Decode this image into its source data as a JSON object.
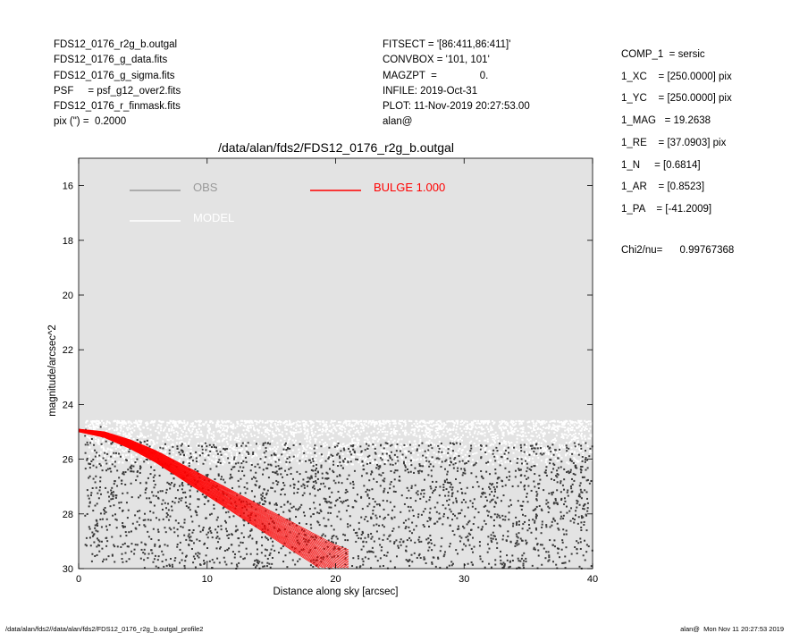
{
  "header_left": [
    "FDS12_0176_r2g_b.outgal",
    "FDS12_0176_g_data.fits",
    "FDS12_0176_g_sigma.fits",
    "PSF     = psf_g12_over2.fits",
    "FDS12_0176_r_finmask.fits",
    "pix (\") =  0.2000"
  ],
  "header_middle": [
    "FITSECT = '[86:411,86:411]'",
    "CONVBOX = '101, 101'",
    "MAGZPT  =               0.",
    "INFILE: 2019-Oct-31",
    "PLOT: 11-Nov-2019 20:27:53.00",
    "alan@"
  ],
  "header_right": [
    "COMP_1  = sersic",
    "1_XC    = [250.0000] pix",
    "1_YC    = [250.0000] pix",
    "1_MAG   = 19.2638",
    "1_RE    = [37.0903] pix",
    "1_N     = [0.6814]",
    "1_AR    = [0.8523]",
    "1_PA    = [-41.2009]"
  ],
  "chi2": "Chi2/nu=      0.99767368",
  "footer": {
    "left": "/data/alan/fds2//data/alan/fds2/FDS12_0176_r2g_b.outgal_profile2",
    "right": "alan@  Mon Nov 11 20:27:53 2019"
  },
  "colors": {
    "plot_bg": "#e3e3e3",
    "obs": "#999999",
    "obs_points": "#3a3a3a",
    "model": "#ffffff",
    "bulge": "#ff0000"
  },
  "chart_data": {
    "type": "scatter",
    "title": "/data/alan/fds2/FDS12_0176_r2g_b.outgal",
    "xlabel": "Distance along sky [arcsec]",
    "ylabel": "magnitude/arcsec^2",
    "xlim": [
      0,
      40
    ],
    "ylim": [
      30,
      15
    ],
    "x_ticks": [
      0,
      10,
      20,
      30,
      40
    ],
    "y_ticks": [
      16,
      18,
      20,
      22,
      24,
      26,
      28,
      30
    ],
    "y_inverted": true,
    "grid": false,
    "legend": [
      {
        "label": "OBS",
        "color": "#999999"
      },
      {
        "label": "MODEL",
        "color": "#ffffff"
      },
      {
        "label": "BULGE  1.000",
        "color": "#ff0000"
      }
    ],
    "series": [
      {
        "name": "OBS",
        "x_range": [
          0.5,
          40
        ],
        "y_range": [
          24.6,
          30
        ],
        "note_values": "dense scatter of observed pixels"
      },
      {
        "name": "MODEL",
        "x_range": [
          0.5,
          40
        ],
        "y_range": [
          24.5,
          26.2
        ]
      },
      {
        "name": "BULGE  1.000",
        "x": [
          0,
          2,
          4,
          6,
          8,
          10,
          12,
          14,
          16,
          18,
          20,
          21
        ],
        "y": [
          25.0,
          25.15,
          25.5,
          25.95,
          26.5,
          27.05,
          27.6,
          28.15,
          28.7,
          29.25,
          29.8,
          30.0
        ]
      }
    ]
  }
}
